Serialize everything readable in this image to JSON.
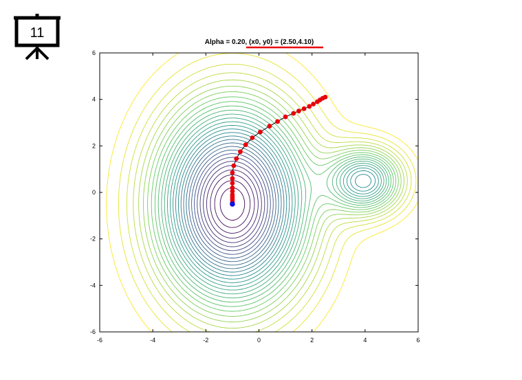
{
  "slide_number": "11",
  "chart_data": {
    "type": "contour",
    "title": "Alpha = 0.20, (x0, y0) = (2.50,4.10)",
    "xlim": [
      -6,
      6
    ],
    "ylim": [
      -6,
      6
    ],
    "xticks": [
      -6,
      -4,
      -2,
      0,
      2,
      4,
      6
    ],
    "yticks": [
      -6,
      -4,
      -2,
      0,
      2,
      4,
      6
    ],
    "path": {
      "color": "#e8000b",
      "x": [
        2.5,
        2.4,
        2.3,
        2.2,
        2.05,
        1.9,
        1.7,
        1.5,
        1.3,
        1.0,
        0.7,
        0.4,
        0.05,
        -0.25,
        -0.5,
        -0.7,
        -0.85,
        -0.95,
        -1.0,
        -1.0,
        -1.0,
        -1.0,
        -1.0,
        -1.0,
        -1.0,
        -1.0,
        -1.0
      ],
      "y": [
        4.1,
        4.05,
        3.98,
        3.9,
        3.8,
        3.7,
        3.6,
        3.5,
        3.4,
        3.25,
        3.05,
        2.85,
        2.6,
        2.35,
        2.05,
        1.75,
        1.45,
        1.15,
        0.85,
        0.6,
        0.4,
        0.2,
        0.05,
        -0.1,
        -0.2,
        -0.3,
        -0.4
      ]
    },
    "end_point": {
      "color": "#1010e0",
      "x": -1.0,
      "y": -0.5
    }
  }
}
